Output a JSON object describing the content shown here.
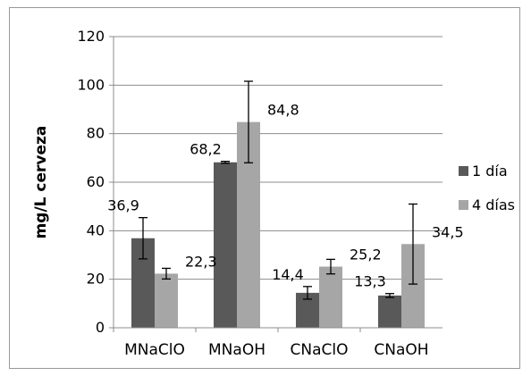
{
  "chart_data": {
    "type": "bar",
    "title": "",
    "xlabel": "",
    "ylabel": "mg/L cerveza",
    "ylim": [
      0,
      120
    ],
    "yticks": [
      0,
      20,
      40,
      60,
      80,
      100,
      120
    ],
    "grid": true,
    "legend_position": "right",
    "categories": [
      "MNaClO",
      "MNaOH",
      "CNaClO",
      "CNaOH"
    ],
    "series": [
      {
        "name": "1 día",
        "color": "#595959",
        "values": [
          36.9,
          68.2,
          14.4,
          13.3
        ],
        "errors": [
          8.5,
          0.4,
          2.6,
          0.8
        ],
        "labels": [
          "36,9",
          "68,2",
          "14,4",
          "13,3"
        ]
      },
      {
        "name": "4 días",
        "color": "#a6a6a6",
        "values": [
          22.3,
          84.8,
          25.2,
          34.5
        ],
        "errors": [
          2.2,
          16.8,
          3.0,
          16.5
        ],
        "labels": [
          "22,3",
          "84,8",
          "25,2",
          "34,5"
        ]
      }
    ]
  }
}
